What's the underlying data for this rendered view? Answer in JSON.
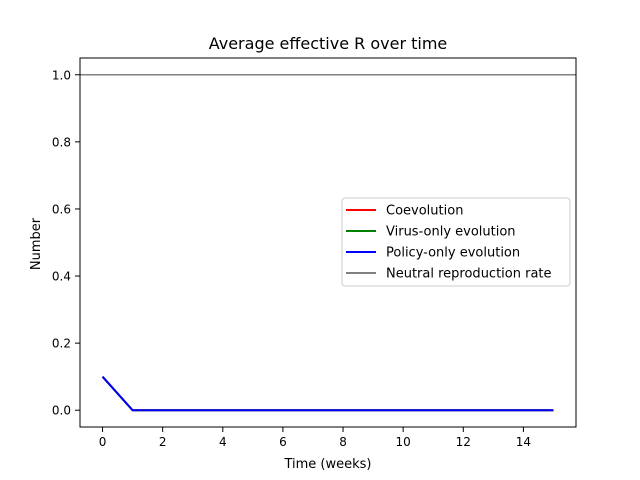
{
  "chart_data": {
    "type": "line",
    "title": "Average effective R over time",
    "xlabel": "Time (weeks)",
    "ylabel": "Number",
    "xlim": [
      -0.75,
      15.75
    ],
    "ylim": [
      -0.05,
      1.05
    ],
    "xticks": [
      0,
      2,
      4,
      6,
      8,
      10,
      12,
      14
    ],
    "xtick_labels": [
      "0",
      "2",
      "4",
      "6",
      "8",
      "10",
      "12",
      "14"
    ],
    "yticks": [
      0.0,
      0.2,
      0.4,
      0.6,
      0.8,
      1.0
    ],
    "ytick_labels": [
      "0.0",
      "0.2",
      "0.4",
      "0.6",
      "0.8",
      "1.0"
    ],
    "grid": false,
    "legend_position": "center-right",
    "x": [
      0,
      1,
      2,
      3,
      4,
      5,
      6,
      7,
      8,
      9,
      10,
      11,
      12,
      13,
      14,
      15
    ],
    "series": [
      {
        "name": "Coevolution",
        "color": "#ff0000",
        "values": [
          0.1,
          0,
          0,
          0,
          0,
          0,
          0,
          0,
          0,
          0,
          0,
          0,
          0,
          0,
          0,
          0
        ]
      },
      {
        "name": "Virus-only evolution",
        "color": "#008000",
        "values": [
          0.1,
          0,
          0,
          0,
          0,
          0,
          0,
          0,
          0,
          0,
          0,
          0,
          0,
          0,
          0,
          0
        ]
      },
      {
        "name": "Policy-only evolution",
        "color": "#0000ff",
        "values": [
          0.1,
          0,
          0,
          0,
          0,
          0,
          0,
          0,
          0,
          0,
          0,
          0,
          0,
          0,
          0,
          0
        ]
      }
    ],
    "reference_lines": [
      {
        "name": "Neutral reproduction rate",
        "color": "#808080",
        "y": 1.0
      }
    ]
  }
}
